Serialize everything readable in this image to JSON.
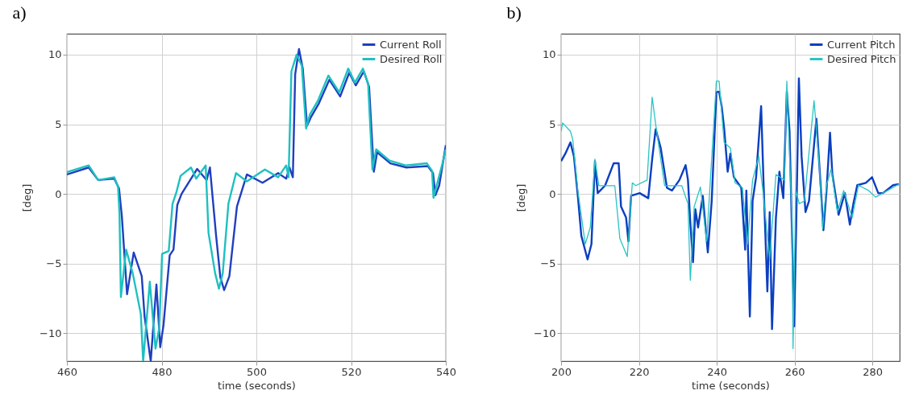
{
  "chart_data": [
    {
      "type": "line",
      "title": "a)",
      "xlabel": "time (seconds)",
      "ylabel": "[deg]",
      "xlim": [
        460,
        540
      ],
      "xticks": [
        460,
        480,
        500,
        520,
        540
      ],
      "ylim": [
        -12,
        11.5
      ],
      "yticks": [
        -10,
        -5,
        0,
        5,
        10
      ],
      "grid": true,
      "legend": "top right",
      "line_style": "solid",
      "series": [
        {
          "name": "Current Roll",
          "color": "#1f3fbf",
          "x": [
            460,
            464.6,
            466.6,
            470,
            471,
            471.6,
            472.7,
            474.1,
            475.8,
            476.4,
            477.7,
            478.9,
            479.7,
            480.4,
            481.7,
            482.5,
            483.3,
            484.2,
            486.4,
            487.5,
            489.5,
            490.2,
            491.5,
            492.4,
            493.2,
            494.3,
            495.9,
            498,
            501.3,
            504.6,
            506.3,
            507,
            507.7,
            508.2,
            509,
            509.8,
            510.7,
            511.5,
            513.2,
            515.4,
            517.7,
            519.6,
            521,
            522.7,
            523.8,
            524.8,
            525.5,
            528.3,
            531.7,
            536.2,
            537.3,
            537.8,
            538.6,
            540
          ],
          "values": [
            1.4,
            1.9,
            1.0,
            1.1,
            0.4,
            -1.6,
            -7.2,
            -4.2,
            -5.9,
            -8.8,
            -12,
            -6.5,
            -11.0,
            -9.4,
            -4.4,
            -4.0,
            -0.8,
            0.0,
            1.2,
            1.8,
            1.0,
            1.9,
            -3.0,
            -6.0,
            -6.9,
            -5.9,
            -0.9,
            1.4,
            0.8,
            1.5,
            1.1,
            1.9,
            1.2,
            8.6,
            10.4,
            9.0,
            4.9,
            5.5,
            6.5,
            8.2,
            7.0,
            8.7,
            7.8,
            8.8,
            7.7,
            1.6,
            3.0,
            2.2,
            1.9,
            2.0,
            1.5,
            -0.1,
            0.6,
            3.5
          ]
        },
        {
          "name": "Desired Roll",
          "color": "#1ec0c0",
          "x": [
            460,
            464.6,
            466.6,
            470,
            470.8,
            471.1,
            471.4,
            472.5,
            473.9,
            475.6,
            476.1,
            477.5,
            478.7,
            479.5,
            480.1,
            481.5,
            482.3,
            483.1,
            484,
            486.2,
            487.3,
            489.3,
            489.9,
            491.3,
            492.1,
            492.9,
            494.1,
            495.7,
            498,
            501.8,
            504.6,
            506.3,
            506.8,
            507.4,
            508.5,
            509.6,
            510.5,
            511.3,
            513,
            515.2,
            517.5,
            519.4,
            520.8,
            522.5,
            523.6,
            524.5,
            525.3,
            528.1,
            531.5,
            536,
            537.1,
            537.4,
            538.3,
            539.3,
            540
          ],
          "values": [
            1.57,
            2.05,
            1.0,
            1.2,
            0.5,
            -1.4,
            -7.4,
            -4.0,
            -5.7,
            -8.6,
            -12,
            -6.3,
            -11.1,
            -9.6,
            -4.3,
            -4.1,
            -0.7,
            0.1,
            1.3,
            1.9,
            1.1,
            2.05,
            -2.8,
            -5.7,
            -6.8,
            -5.7,
            -0.7,
            1.5,
            0.9,
            1.76,
            1.2,
            2.05,
            1.2,
            8.8,
            10.0,
            9.2,
            4.7,
            5.7,
            6.7,
            8.5,
            7.3,
            9.0,
            8.0,
            9.0,
            7.9,
            1.76,
            3.2,
            2.4,
            2.05,
            2.2,
            1.66,
            -0.27,
            0.9,
            2.2,
            3.2
          ]
        }
      ]
    },
    {
      "type": "line",
      "title": "b)",
      "xlabel": "time (seconds)",
      "ylabel": "[deg]",
      "xlim": [
        200,
        287
      ],
      "xticks": [
        200,
        220,
        240,
        260,
        280
      ],
      "ylim": [
        -12,
        11.5
      ],
      "yticks": [
        -10,
        -5,
        0,
        5,
        10
      ],
      "grid": true,
      "legend": "top right",
      "line_style": "solid",
      "series": [
        {
          "name": "Current Pitch",
          "color": "#0b3fc0",
          "x": [
            200,
            201.1,
            202.4,
            203.3,
            204.3,
            205.2,
            206.8,
            207.8,
            208.7,
            209.4,
            211.3,
            213.5,
            214.8,
            215.4,
            216.7,
            217.3,
            218,
            220.2,
            222.4,
            223.4,
            224.3,
            225.6,
            227.2,
            228.5,
            230.4,
            232,
            232.6,
            233.2,
            233.9,
            234.5,
            235.2,
            236.4,
            237.7,
            238.7,
            239.9,
            240.6,
            241.3,
            241.9,
            242.8,
            243.5,
            244.4,
            246.3,
            247.3,
            247.6,
            248.5,
            249.2,
            250.1,
            251.4,
            252,
            253,
            253.6,
            254.2,
            255.2,
            256.1,
            257.1,
            258,
            258.7,
            259.9,
            260.6,
            261.1,
            261.8,
            262.8,
            263.7,
            265.6,
            266.6,
            267.4,
            268.2,
            269.1,
            269.7,
            271.3,
            272.9,
            274.2,
            275.1,
            276.1,
            278.3,
            279.9,
            281.5,
            282.7,
            285.3,
            286.8
          ],
          "values": [
            2.36,
            2.9,
            3.7,
            2.7,
            -0.13,
            -3.0,
            -4.7,
            -3.6,
            2.36,
            0.06,
            0.6,
            2.2,
            2.2,
            -0.9,
            -1.7,
            -3.4,
            -0.13,
            0.06,
            -0.3,
            2.5,
            4.65,
            3.3,
            0.44,
            0.25,
            1.0,
            2.07,
            1.0,
            -2.05,
            -4.9,
            -1.1,
            -2.4,
            -0.13,
            -4.2,
            -0.5,
            7.3,
            7.35,
            6.2,
            4.7,
            1.6,
            2.9,
            1.2,
            0.44,
            -4.0,
            0.25,
            -8.8,
            -0.5,
            1.2,
            6.3,
            1.0,
            -7.0,
            -1.3,
            -9.7,
            -1.7,
            1.6,
            -0.3,
            7.35,
            4.5,
            -9.5,
            0.63,
            8.3,
            2.7,
            -1.3,
            -0.5,
            5.4,
            1.0,
            -2.6,
            0.25,
            4.4,
            1.4,
            -1.5,
            0.06,
            -2.2,
            -0.7,
            0.63,
            0.8,
            1.2,
            0.06,
            0.06,
            0.63,
            0.7
          ]
        },
        {
          "name": "Desired Pitch",
          "color": "#2ac4c4",
          "x": [
            200,
            200.4,
            202.4,
            203,
            204.3,
            206.2,
            207.5,
            208.7,
            209.7,
            213.8,
            215.1,
            217,
            218.3,
            219.2,
            222.1,
            223.4,
            224.3,
            226.6,
            231,
            232.6,
            233.2,
            234.2,
            235.8,
            237.4,
            239.9,
            240.6,
            241.9,
            243.5,
            244.7,
            246.6,
            247.9,
            249.2,
            250.8,
            252,
            253.6,
            255.2,
            257.4,
            258,
            259.3,
            259.6,
            260.3,
            261.2,
            262.5,
            265,
            266.3,
            267.2,
            268.2,
            269.4,
            271,
            272.6,
            274.8,
            276.4,
            279,
            280.8,
            282.7,
            286.8
          ],
          "values": [
            4.5,
            5.1,
            4.5,
            3.9,
            0.25,
            -3.6,
            -2.4,
            2.5,
            0.6,
            0.6,
            -3.2,
            -4.5,
            0.8,
            0.6,
            1.0,
            6.95,
            5.0,
            0.6,
            0.6,
            -0.7,
            -6.2,
            -0.9,
            0.5,
            -3.4,
            8.1,
            8.1,
            3.7,
            3.3,
            0.8,
            0.44,
            -3.6,
            1.0,
            2.7,
            -0.13,
            -4.7,
            1.4,
            1.0,
            8.1,
            -1.7,
            -11.1,
            0.25,
            -0.7,
            -0.5,
            6.7,
            2.2,
            -2.5,
            0.63,
            1.8,
            -1.3,
            0.25,
            -1.7,
            0.63,
            0.25,
            -0.23,
            0.06,
            0.7
          ]
        }
      ]
    }
  ]
}
